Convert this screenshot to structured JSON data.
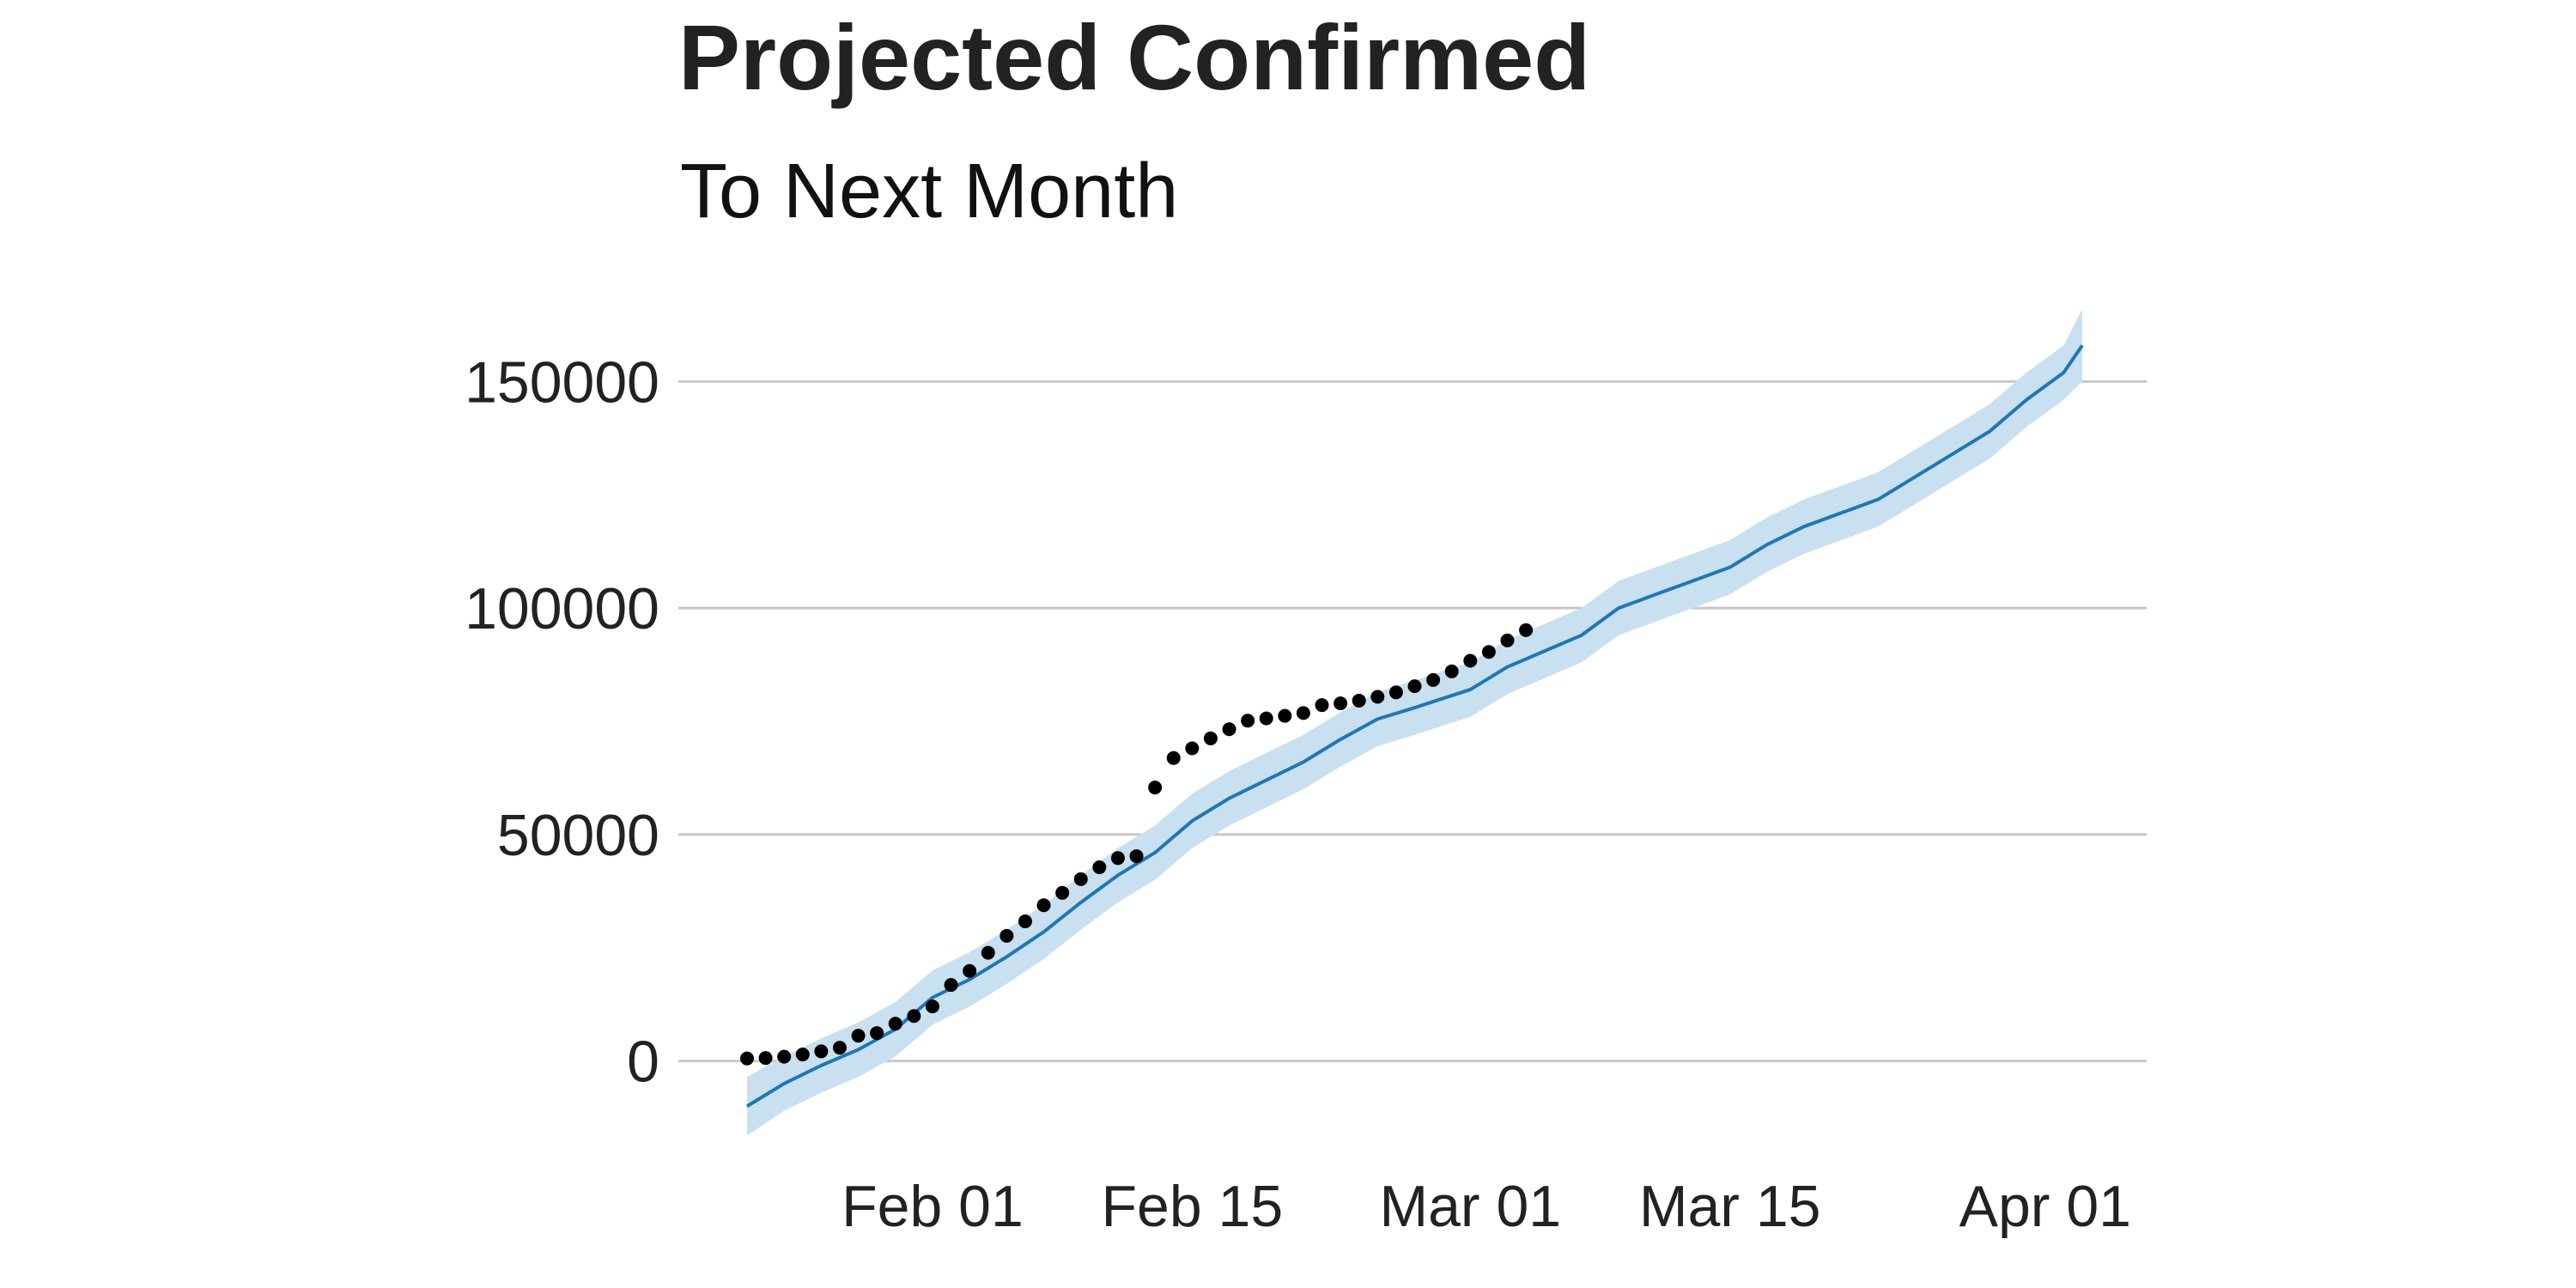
{
  "chart_data": {
    "type": "line",
    "title": "Projected Confirmed",
    "subtitle": "To Next Month",
    "xlabel": "",
    "ylabel": "",
    "x_axis": {
      "type": "date",
      "range": [
        "2020-01-22",
        "2020-04-03"
      ],
      "tick_labels": [
        {
          "date": "2020-02-01",
          "label": "Feb 01"
        },
        {
          "date": "2020-02-15",
          "label": "Feb 15"
        },
        {
          "date": "2020-03-01",
          "label": "Mar 01"
        },
        {
          "date": "2020-03-15",
          "label": "Mar 15"
        },
        {
          "date": "2020-04-01",
          "label": "Apr 01"
        }
      ]
    },
    "y_axis": {
      "range": [
        -16000,
        166000
      ],
      "ticks": [
        0,
        50000,
        100000,
        150000
      ],
      "tick_labels": [
        "0",
        "50000",
        "100000",
        "150000"
      ]
    },
    "grid": "horizontal",
    "legend": "none",
    "colors": {
      "line": "#1f77b4",
      "band": "#c9e0f0",
      "points": "#000000",
      "grid": "#c8c8c8"
    },
    "series": [
      {
        "type": "scatter",
        "kind": "observed",
        "points": [
          [
            "2020-01-22",
            555
          ],
          [
            "2020-01-23",
            653
          ],
          [
            "2020-01-24",
            941
          ],
          [
            "2020-01-25",
            1434
          ],
          [
            "2020-01-26",
            2118
          ],
          [
            "2020-01-27",
            2927
          ],
          [
            "2020-01-28",
            5578
          ],
          [
            "2020-01-29",
            6166
          ],
          [
            "2020-01-30",
            8234
          ],
          [
            "2020-01-31",
            9927
          ],
          [
            "2020-02-01",
            12038
          ],
          [
            "2020-02-02",
            16787
          ],
          [
            "2020-02-03",
            19881
          ],
          [
            "2020-02-04",
            23892
          ],
          [
            "2020-02-05",
            27635
          ],
          [
            "2020-02-06",
            30817
          ],
          [
            "2020-02-07",
            34391
          ],
          [
            "2020-02-08",
            37120
          ],
          [
            "2020-02-09",
            40150
          ],
          [
            "2020-02-10",
            42762
          ],
          [
            "2020-02-11",
            44802
          ],
          [
            "2020-02-12",
            45221
          ],
          [
            "2020-02-13",
            60368
          ],
          [
            "2020-02-14",
            66885
          ],
          [
            "2020-02-15",
            69030
          ],
          [
            "2020-02-16",
            71224
          ],
          [
            "2020-02-17",
            73258
          ],
          [
            "2020-02-18",
            75136
          ],
          [
            "2020-02-19",
            75639
          ],
          [
            "2020-02-20",
            76197
          ],
          [
            "2020-02-21",
            76819
          ],
          [
            "2020-02-22",
            78572
          ],
          [
            "2020-02-23",
            78958
          ],
          [
            "2020-02-24",
            79561
          ],
          [
            "2020-02-25",
            80406
          ],
          [
            "2020-02-26",
            81388
          ],
          [
            "2020-02-27",
            82746
          ],
          [
            "2020-02-28",
            84112
          ],
          [
            "2020-02-29",
            86011
          ],
          [
            "2020-03-01",
            88369
          ],
          [
            "2020-03-02",
            90306
          ],
          [
            "2020-03-03",
            92840
          ],
          [
            "2020-03-04",
            95120
          ]
        ]
      },
      {
        "type": "line",
        "kind": "projection",
        "with_band": true,
        "points": [
          [
            "2020-01-22",
            -10000,
            -16500,
            -3500
          ],
          [
            "2020-01-24",
            -5000,
            -11000,
            1000
          ],
          [
            "2020-01-26",
            -1000,
            -7000,
            5000
          ],
          [
            "2020-01-28",
            2500,
            -3500,
            8500
          ],
          [
            "2020-01-30",
            7000,
            1000,
            13000
          ],
          [
            "2020-02-01",
            14000,
            8000,
            20000
          ],
          [
            "2020-02-03",
            18000,
            12000,
            24000
          ],
          [
            "2020-02-05",
            23000,
            17000,
            29000
          ],
          [
            "2020-02-07",
            28500,
            22500,
            34500
          ],
          [
            "2020-02-09",
            35000,
            29000,
            41000
          ],
          [
            "2020-02-11",
            41000,
            35000,
            47000
          ],
          [
            "2020-02-13",
            46000,
            40000,
            52000
          ],
          [
            "2020-02-15",
            53000,
            47000,
            59000
          ],
          [
            "2020-02-17",
            58000,
            52000,
            64000
          ],
          [
            "2020-02-19",
            62000,
            56000,
            68000
          ],
          [
            "2020-02-21",
            66000,
            60000,
            72000
          ],
          [
            "2020-02-23",
            71000,
            65000,
            77000
          ],
          [
            "2020-02-25",
            75500,
            69500,
            81500
          ],
          [
            "2020-02-27",
            78000,
            72000,
            84000
          ],
          [
            "2020-03-01",
            82000,
            76000,
            88000
          ],
          [
            "2020-03-03",
            87000,
            81000,
            93000
          ],
          [
            "2020-03-05",
            90500,
            84500,
            96500
          ],
          [
            "2020-03-07",
            94000,
            88000,
            100000
          ],
          [
            "2020-03-09",
            100000,
            94000,
            106000
          ],
          [
            "2020-03-11",
            103000,
            97000,
            109000
          ],
          [
            "2020-03-13",
            106000,
            100000,
            112000
          ],
          [
            "2020-03-15",
            109000,
            103000,
            115000
          ],
          [
            "2020-03-17",
            114000,
            108000,
            120000
          ],
          [
            "2020-03-19",
            118000,
            112000,
            124000
          ],
          [
            "2020-03-21",
            121000,
            115000,
            127000
          ],
          [
            "2020-03-23",
            124000,
            118000,
            130000
          ],
          [
            "2020-03-25",
            129000,
            123000,
            135000
          ],
          [
            "2020-03-27",
            134000,
            128000,
            140000
          ],
          [
            "2020-03-29",
            139000,
            133000,
            145000
          ],
          [
            "2020-03-31",
            146000,
            140000,
            152000
          ],
          [
            "2020-04-02",
            152000,
            146000,
            158000
          ],
          [
            "2020-04-03",
            158000,
            150000,
            166000
          ]
        ]
      }
    ]
  }
}
